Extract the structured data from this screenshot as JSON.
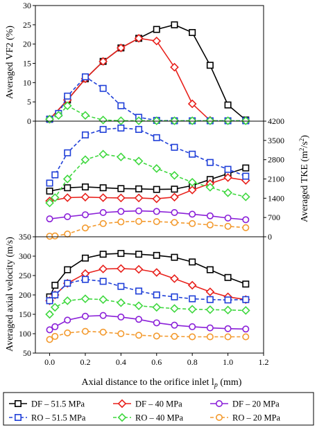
{
  "chart_data": [
    {
      "type": "line",
      "panel": "top",
      "ylabel": "Averaged VF2 (%)",
      "ylim": [
        0,
        30
      ],
      "yticks": [
        "0",
        "5",
        "10",
        "15",
        "20",
        "25",
        "30"
      ],
      "series": [
        {
          "name": "DF – 51.5 MPa",
          "color": "#000000",
          "marker": "square",
          "dash": false,
          "x": [
            0,
            0.1,
            0.2,
            0.3,
            0.4,
            0.5,
            0.6,
            0.7,
            0.8,
            0.9,
            1.0,
            1.1
          ],
          "y": [
            0.5,
            5.5,
            11.0,
            15.5,
            19.0,
            21.5,
            23.8,
            25.0,
            23.0,
            14.5,
            4.2,
            0.3
          ]
        },
        {
          "name": "DF – 40 MPa",
          "color": "#e8211c",
          "marker": "diamond",
          "dash": false,
          "x": [
            0,
            0.1,
            0.2,
            0.3,
            0.4,
            0.5,
            0.6,
            0.7,
            0.8,
            0.9
          ],
          "y": [
            0.5,
            5.5,
            11.0,
            15.5,
            19.0,
            21.5,
            20.8,
            14.0,
            4.5,
            0.2
          ]
        },
        {
          "name": "RO – 51.5 MPa",
          "color": "#1f3fd8",
          "marker": "square",
          "dash": true,
          "x": [
            0,
            0.05,
            0.1,
            0.2,
            0.3,
            0.4,
            0.5,
            0.6,
            0.7,
            0.8,
            0.9,
            1.0,
            1.1
          ],
          "y": [
            0.5,
            2.0,
            6.5,
            11.5,
            8.5,
            4.0,
            1.0,
            0.2,
            0.1,
            0.1,
            0.1,
            0.1,
            0.1
          ]
        },
        {
          "name": "RO – 40 MPa",
          "color": "#3fd83f",
          "marker": "diamond",
          "dash": true,
          "x": [
            0,
            0.05,
            0.1,
            0.2,
            0.3,
            0.4,
            0.5,
            0.6,
            0.7,
            0.8,
            0.9,
            1.0,
            1.1
          ],
          "y": [
            0.5,
            1.5,
            4.0,
            1.5,
            0.3,
            0.1,
            0.1,
            0.1,
            0.1,
            0.1,
            0.1,
            0.1,
            0.1
          ]
        }
      ]
    },
    {
      "type": "line",
      "panel": "middle",
      "ylabel": "Averaged TKE (m²/s²)",
      "ylim": [
        0,
        4200
      ],
      "yticks": [
        "0",
        "700",
        "1400",
        "2100",
        "2800",
        "3500",
        "4200"
      ],
      "series": [
        {
          "name": "DF – 51.5 MPa",
          "color": "#000000",
          "marker": "square",
          "dash": false,
          "x": [
            0,
            0.1,
            0.2,
            0.3,
            0.4,
            0.5,
            0.6,
            0.7,
            0.8,
            0.9,
            1.0,
            1.1
          ],
          "y": [
            1660,
            1780,
            1810,
            1780,
            1750,
            1740,
            1720,
            1730,
            1860,
            2080,
            2290,
            2500
          ]
        },
        {
          "name": "DF – 40 MPa",
          "color": "#e8211c",
          "marker": "diamond",
          "dash": false,
          "x": [
            0,
            0.1,
            0.2,
            0.3,
            0.4,
            0.5,
            0.6,
            0.7,
            0.8,
            0.9,
            1.0,
            1.1
          ],
          "y": [
            1300,
            1420,
            1440,
            1420,
            1410,
            1410,
            1380,
            1440,
            1700,
            1930,
            2150,
            2050
          ]
        },
        {
          "name": "DF – 20 MPa",
          "color": "#8a1fd8",
          "marker": "circle",
          "dash": false,
          "x": [
            0,
            0.1,
            0.2,
            0.3,
            0.4,
            0.5,
            0.6,
            0.7,
            0.8,
            0.9,
            1.0,
            1.1
          ],
          "y": [
            650,
            730,
            800,
            880,
            920,
            940,
            920,
            880,
            820,
            760,
            680,
            620
          ]
        },
        {
          "name": "RO – 51.5 MPa",
          "color": "#1f3fd8",
          "marker": "square",
          "dash": true,
          "x": [
            0,
            0.03,
            0.1,
            0.2,
            0.3,
            0.4,
            0.5,
            0.6,
            0.7,
            0.8,
            0.9,
            1.0,
            1.1
          ],
          "y": [
            1950,
            2250,
            3050,
            3700,
            3900,
            3950,
            3900,
            3600,
            3250,
            3000,
            2700,
            2450,
            2200
          ]
        },
        {
          "name": "RO – 40 MPa",
          "color": "#3fd83f",
          "marker": "diamond",
          "dash": true,
          "x": [
            0,
            0.03,
            0.1,
            0.2,
            0.3,
            0.4,
            0.5,
            0.6,
            0.7,
            0.8,
            0.9,
            1.0,
            1.1
          ],
          "y": [
            1230,
            1420,
            2100,
            2800,
            3000,
            2900,
            2750,
            2480,
            2230,
            1980,
            1800,
            1600,
            1450
          ]
        },
        {
          "name": "RO – 20 MPa",
          "color": "#f39a2e",
          "marker": "circle",
          "dash": true,
          "x": [
            0,
            0.03,
            0.1,
            0.2,
            0.3,
            0.4,
            0.5,
            0.6,
            0.7,
            0.8,
            0.9,
            1.0,
            1.1
          ],
          "y": [
            20,
            30,
            100,
            320,
            480,
            540,
            560,
            550,
            520,
            480,
            430,
            380,
            330
          ]
        }
      ]
    },
    {
      "type": "line",
      "panel": "bottom",
      "ylabel": "Averaged axial velocity (m/s)",
      "xlabel": "Axial distance to the orifice inlet l",
      "xlabel_sub": "p",
      "xlabel_unit": " (mm)",
      "xlim": [
        -0.08,
        1.2
      ],
      "ylim": [
        50,
        350
      ],
      "xticks": [
        "0.0",
        "0.2",
        "0.4",
        "0.6",
        "0.8",
        "1.0",
        "1.2"
      ],
      "yticks": [
        "50",
        "100",
        "150",
        "200",
        "250",
        "300",
        "350"
      ],
      "series": [
        {
          "name": "DF – 51.5 MPa",
          "color": "#000000",
          "marker": "square",
          "dash": false,
          "x": [
            0,
            0.03,
            0.1,
            0.2,
            0.3,
            0.4,
            0.5,
            0.6,
            0.7,
            0.8,
            0.9,
            1.0,
            1.1
          ],
          "y": [
            195,
            225,
            265,
            295,
            305,
            307,
            305,
            302,
            297,
            285,
            265,
            245,
            228
          ]
        },
        {
          "name": "DF – 40 MPa",
          "color": "#e8211c",
          "marker": "diamond",
          "dash": false,
          "x": [
            0,
            0.03,
            0.1,
            0.2,
            0.3,
            0.4,
            0.5,
            0.6,
            0.7,
            0.8,
            0.9,
            1.0,
            1.1
          ],
          "y": [
            185,
            200,
            230,
            255,
            267,
            268,
            266,
            258,
            242,
            225,
            208,
            195,
            188
          ]
        },
        {
          "name": "DF – 20 MPa",
          "color": "#8a1fd8",
          "marker": "circle",
          "dash": false,
          "x": [
            0,
            0.03,
            0.1,
            0.2,
            0.3,
            0.4,
            0.5,
            0.6,
            0.7,
            0.8,
            0.9,
            1.0,
            1.1
          ],
          "y": [
            110,
            118,
            135,
            145,
            147,
            143,
            137,
            128,
            122,
            118,
            115,
            113,
            112
          ]
        },
        {
          "name": "RO – 51.5 MPa",
          "color": "#1f3fd8",
          "marker": "square",
          "dash": true,
          "x": [
            0,
            0.03,
            0.1,
            0.2,
            0.3,
            0.4,
            0.5,
            0.6,
            0.7,
            0.8,
            0.9,
            1.0,
            1.1
          ],
          "y": [
            185,
            200,
            230,
            240,
            235,
            222,
            210,
            200,
            195,
            190,
            188,
            187,
            188
          ]
        },
        {
          "name": "RO – 40 MPa",
          "color": "#3fd83f",
          "marker": "diamond",
          "dash": true,
          "x": [
            0,
            0.03,
            0.1,
            0.2,
            0.3,
            0.4,
            0.5,
            0.6,
            0.7,
            0.8,
            0.9,
            1.0,
            1.1
          ],
          "y": [
            150,
            168,
            185,
            190,
            188,
            180,
            172,
            168,
            165,
            163,
            162,
            161,
            160
          ]
        },
        {
          "name": "RO – 20 MPa",
          "color": "#f39a2e",
          "marker": "circle",
          "dash": true,
          "x": [
            0,
            0.03,
            0.1,
            0.2,
            0.3,
            0.4,
            0.5,
            0.6,
            0.7,
            0.8,
            0.9,
            1.0,
            1.1
          ],
          "y": [
            85,
            93,
            102,
            106,
            104,
            100,
            96,
            94,
            93,
            92,
            92,
            92,
            92
          ]
        }
      ]
    }
  ],
  "legend": {
    "placement": "bottom",
    "entries": [
      {
        "label": "DF – 51.5 MPa",
        "color": "#000000",
        "marker": "square",
        "dash": false
      },
      {
        "label": "DF – 40 MPa",
        "color": "#e8211c",
        "marker": "diamond",
        "dash": false
      },
      {
        "label": "DF – 20 MPa",
        "color": "#8a1fd8",
        "marker": "circle",
        "dash": false
      },
      {
        "label": "RO – 51.5 MPa",
        "color": "#1f3fd8",
        "marker": "square",
        "dash": true
      },
      {
        "label": "RO – 40 MPa",
        "color": "#3fd83f",
        "marker": "diamond",
        "dash": true
      },
      {
        "label": "RO – 20 MPa",
        "color": "#f39a2e",
        "marker": "circle",
        "dash": true
      }
    ]
  }
}
